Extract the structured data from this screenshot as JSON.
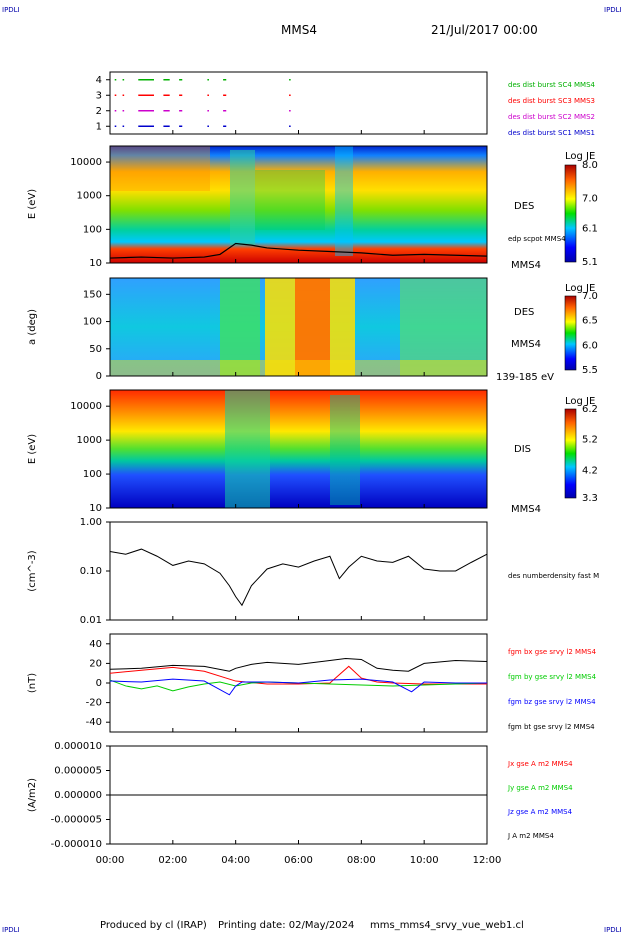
{
  "header": {
    "corner_logo": "IPDLI",
    "title": "MMS4",
    "date": "21/Jul/2017 00:00"
  },
  "footer": {
    "produced_by": "Produced by  cl (IRAP)",
    "printing_date": "Printing date: 02/May/2024",
    "file": "mms_mms4_srvy_vue_web1.cl"
  },
  "colors": {
    "mms1": "#0000cc",
    "mms2": "#cc00cc",
    "mms3": "#ff0000",
    "mms4": "#00b000",
    "bx": "#ff0000",
    "by": "#00cc00",
    "bz": "#0000ff",
    "bt": "#000000"
  },
  "x_axis": {
    "ticks": [
      "00:00",
      "02:00",
      "04:00",
      "06:00",
      "08:00",
      "10:00",
      "12:00"
    ],
    "range_hours": [
      0,
      12
    ]
  },
  "chart_data": [
    {
      "type": "scatter",
      "panel": "burst-availability",
      "ylim": [
        0.5,
        4.5
      ],
      "yticks": [
        "1",
        "2",
        "3",
        "4"
      ],
      "series": [
        {
          "name": "des dist burst SC1 MMS1",
          "level": 1,
          "color": "#0000cc",
          "intervals": [
            [
              0.15,
              0.2
            ],
            [
              0.4,
              0.45
            ],
            [
              0.9,
              1.4
            ],
            [
              1.7,
              1.9
            ],
            [
              2.2,
              2.3
            ],
            [
              3.1,
              3.15
            ],
            [
              3.6,
              3.7
            ],
            [
              5.7,
              5.75
            ]
          ]
        },
        {
          "name": "des dist burst SC2 MMS2",
          "level": 2,
          "color": "#cc00cc",
          "intervals": [
            [
              0.15,
              0.2
            ],
            [
              0.4,
              0.45
            ],
            [
              0.9,
              1.4
            ],
            [
              1.7,
              1.9
            ],
            [
              2.2,
              2.3
            ],
            [
              3.1,
              3.15
            ],
            [
              3.6,
              3.7
            ],
            [
              5.7,
              5.75
            ]
          ]
        },
        {
          "name": "des dist burst SC3 MMS3",
          "level": 3,
          "color": "#ff0000",
          "intervals": [
            [
              0.15,
              0.2
            ],
            [
              0.4,
              0.45
            ],
            [
              0.9,
              1.4
            ],
            [
              1.7,
              1.9
            ],
            [
              2.2,
              2.3
            ],
            [
              3.1,
              3.15
            ],
            [
              3.6,
              3.7
            ],
            [
              5.7,
              5.75
            ]
          ]
        },
        {
          "name": "des dist burst SC4 MMS4",
          "level": 4,
          "color": "#00b000",
          "intervals": [
            [
              0.15,
              0.2
            ],
            [
              0.4,
              0.45
            ],
            [
              0.9,
              1.4
            ],
            [
              1.7,
              1.9
            ],
            [
              2.2,
              2.3
            ],
            [
              3.1,
              3.15
            ],
            [
              3.6,
              3.7
            ],
            [
              5.7,
              5.75
            ]
          ]
        }
      ]
    },
    {
      "type": "heatmap",
      "panel": "des-energy",
      "ylabel": "E (eV)",
      "yscale": "log",
      "yticks": [
        "10",
        "100",
        "1000",
        "10000"
      ],
      "ylim": [
        10,
        30000
      ],
      "instrument": "DES",
      "spacecraft": "MMS4",
      "colorbar": {
        "label": "Log JE",
        "ticks": [
          "8.0",
          "7.0",
          "6.1",
          "5.1"
        ],
        "range": [
          5.1,
          8.0
        ]
      },
      "overlay_series": {
        "name": "edp scpot MMS4",
        "x": [
          0,
          1,
          2,
          3,
          3.5,
          4,
          4.5,
          5,
          6,
          7,
          8,
          9,
          10,
          11,
          12
        ],
        "values": [
          14,
          15,
          14,
          15,
          18,
          38,
          34,
          28,
          24,
          22,
          20,
          17,
          18,
          17,
          16
        ]
      }
    },
    {
      "type": "heatmap",
      "panel": "des-pitch-angle",
      "ylabel": "a (deg)",
      "yticks": [
        "0",
        "50",
        "100",
        "150"
      ],
      "ylim": [
        0,
        180
      ],
      "instrument": "DES",
      "spacecraft": "MMS4",
      "energy_range": "139-185 eV",
      "colorbar": {
        "label": "Log JE",
        "ticks": [
          "7.0",
          "6.5",
          "6.0",
          "5.5"
        ],
        "range": [
          5.5,
          7.0
        ]
      }
    },
    {
      "type": "heatmap",
      "panel": "dis-energy",
      "ylabel": "E (eV)",
      "yscale": "log",
      "yticks": [
        "10",
        "100",
        "1000",
        "10000"
      ],
      "ylim": [
        10,
        30000
      ],
      "instrument": "DIS",
      "spacecraft": "MMS4",
      "colorbar": {
        "label": "Log JE",
        "ticks": [
          "6.2",
          "5.2",
          "4.2",
          "3.3"
        ],
        "range": [
          3.3,
          6.2
        ]
      }
    },
    {
      "type": "line",
      "panel": "density",
      "ylabel": "(cm^-3)",
      "yscale": "log",
      "yticks": [
        "0.01",
        "0.10",
        "1.00"
      ],
      "ylim": [
        0.01,
        1.0
      ],
      "series": [
        {
          "name": "des numberdensity fast M",
          "x": [
            0,
            0.5,
            1,
            1.5,
            2,
            2.5,
            3,
            3.5,
            3.8,
            4,
            4.2,
            4.5,
            5,
            5.5,
            6,
            6.5,
            7,
            7.3,
            7.6,
            8,
            8.5,
            9,
            9.5,
            10,
            10.5,
            11,
            11.5,
            12
          ],
          "values": [
            0.25,
            0.22,
            0.28,
            0.2,
            0.13,
            0.16,
            0.14,
            0.09,
            0.05,
            0.03,
            0.02,
            0.05,
            0.11,
            0.14,
            0.12,
            0.16,
            0.2,
            0.07,
            0.12,
            0.2,
            0.16,
            0.15,
            0.2,
            0.11,
            0.1,
            0.1,
            0.15,
            0.22
          ]
        }
      ]
    },
    {
      "type": "line",
      "panel": "magnetic-field",
      "ylabel": "(nT)",
      "yticks": [
        "-40",
        "-20",
        "0",
        "20",
        "40"
      ],
      "ylim": [
        -50,
        50
      ],
      "series": [
        {
          "name": "fgm bx gse srvy l2 MMS4",
          "color": "#ff0000",
          "x": [
            0,
            1,
            2,
            3,
            4,
            5,
            6,
            7,
            7.6,
            8,
            8.5,
            9,
            10,
            11,
            12
          ],
          "values": [
            10,
            13,
            16,
            12,
            2,
            -1,
            -1,
            0,
            17,
            5,
            1,
            0,
            -1,
            -1,
            -1
          ]
        },
        {
          "name": "fgm by gse srvy l2 MMS4",
          "color": "#00cc00",
          "x": [
            0,
            0.5,
            1,
            1.5,
            2,
            2.5,
            3,
            3.5,
            4,
            4.5,
            5,
            6,
            7,
            8,
            9,
            10,
            11,
            12
          ],
          "values": [
            3,
            -3,
            -6,
            -3,
            -8,
            -4,
            -1,
            1,
            -3,
            0,
            1,
            0,
            -1,
            -2,
            -3,
            -2,
            -1,
            0
          ]
        },
        {
          "name": "fgm bz gse srvy l2 MMS4",
          "color": "#0000ff",
          "x": [
            0,
            1,
            2,
            3,
            3.8,
            4,
            4.2,
            5,
            6,
            7,
            8,
            9,
            9.6,
            10,
            11,
            12
          ],
          "values": [
            2,
            1,
            4,
            2,
            -12,
            -3,
            1,
            1,
            0,
            3,
            4,
            1,
            -9,
            1,
            0,
            0
          ]
        },
        {
          "name": "fgm bt gse srvy l2 MMS4",
          "color": "#000000",
          "x": [
            0,
            1,
            2,
            3,
            3.8,
            4,
            4.5,
            5,
            6,
            7,
            7.5,
            8,
            8.5,
            9,
            9.5,
            10,
            11,
            12
          ],
          "values": [
            14,
            15,
            18,
            17,
            12,
            15,
            19,
            21,
            19,
            23,
            25,
            24,
            15,
            13,
            12,
            20,
            23,
            22
          ]
        }
      ]
    },
    {
      "type": "line",
      "panel": "current-density",
      "ylabel": "(A/m2)",
      "yticks": [
        "-0.000010",
        "-0.000005",
        "0.000000",
        "0.000005",
        "0.000010"
      ],
      "ylim": [
        -1e-05,
        1e-05
      ],
      "series": [
        {
          "name": "Jx gse A m2 MMS4",
          "color": "#ff0000",
          "x": [
            0,
            12
          ],
          "values": [
            0,
            0
          ]
        },
        {
          "name": "Jy gse A m2 MMS4",
          "color": "#00cc00",
          "x": [
            0,
            12
          ],
          "values": [
            0,
            0
          ]
        },
        {
          "name": "Jz gse A m2 MMS4",
          "color": "#0000ff",
          "x": [
            0,
            12
          ],
          "values": [
            0,
            0
          ]
        },
        {
          "name": "J A m2 MMS4",
          "color": "#000000",
          "x": [
            0,
            12
          ],
          "values": [
            0,
            0
          ]
        }
      ]
    }
  ]
}
